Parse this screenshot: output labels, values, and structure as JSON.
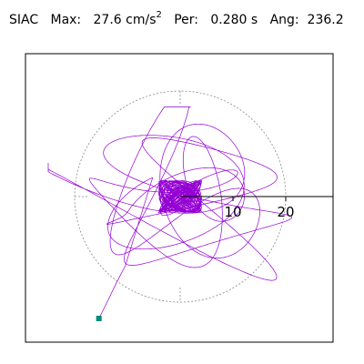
{
  "header": {
    "station": "SIAC",
    "max_label": "Max:",
    "max_value": "27.6 cm/s",
    "max_exp": "2",
    "per_label": "Per:",
    "per_value": "0.280 s",
    "ang_label": "Ang:",
    "ang_value": "236.2"
  },
  "chart_data": {
    "type": "line",
    "title": "SIAC  Max: 27.6 cm/s2  Per: 0.280 s  Ang: 236.2",
    "axis_ticks": [
      "10",
      "20"
    ],
    "axis_tick_values": [
      10,
      20
    ],
    "polar_grid_radius": 20,
    "xlim": [
      -30,
      30
    ],
    "ylim": [
      -28,
      28
    ],
    "max_amplitude": 27.6,
    "angle_deg": 236.2,
    "colors": {
      "trace": "#9400d3",
      "marker": "#008b7a",
      "frame": "#000000",
      "grid": "#888888"
    },
    "marker_point": {
      "x": -15.4,
      "y": -23.1
    }
  }
}
